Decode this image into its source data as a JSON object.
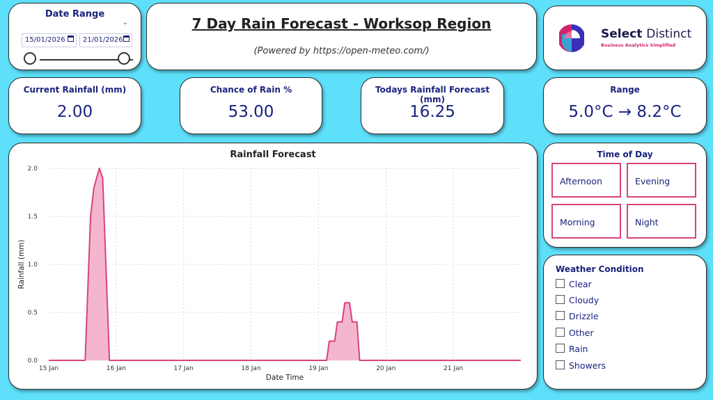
{
  "date_range": {
    "title": "Date Range",
    "start": "15/01/2026",
    "end": "21/01/2026"
  },
  "header": {
    "title": "7 Day Rain Forecast - Worksop Region",
    "subtitle": "(Powered by https://open-meteo.com/)"
  },
  "logo": {
    "name_bold": "Select",
    "name_light": "Distinct",
    "tagline": "Business Analytics Simplified"
  },
  "kpis": [
    {
      "label": "Current Rainfall (mm)",
      "value": "2.00"
    },
    {
      "label": "Chance of Rain %",
      "value": "53.00"
    },
    {
      "label": "Todays Rainfall Forecast (mm)",
      "value": "16.25"
    },
    {
      "label": "Range",
      "value": "5.0°C → 8.2°C"
    }
  ],
  "time_of_day": {
    "title": "Time of Day",
    "options": [
      "Afternoon",
      "Evening",
      "Morning",
      "Night"
    ]
  },
  "weather": {
    "title": "Weather Condition",
    "options": [
      "Clear",
      "Cloudy",
      "Drizzle",
      "Other",
      "Rain",
      "Showers"
    ]
  },
  "colors": {
    "background": "#5ee0fb",
    "accent": "#d8427e",
    "area_fill": "#f4b6cf",
    "text": "#1a237e"
  },
  "chart_data": {
    "type": "area",
    "title": "Rainfall Forecast",
    "xlabel": "Date Time",
    "ylabel": "Rainfall (mm)",
    "ylim": [
      0,
      2.0
    ],
    "xlim": [
      0,
      7
    ],
    "y_ticks": [
      "0.0",
      "0.5",
      "1.0",
      "1.5",
      "2.0"
    ],
    "x_ticks": [
      "15 Jan",
      "16 Jan",
      "17 Jan",
      "18 Jan",
      "19 Jan",
      "20 Jan",
      "21 Jan"
    ],
    "grid": true,
    "series": [
      {
        "points": [
          [
            0,
            0
          ],
          [
            0.54,
            0
          ],
          [
            0.62,
            1.5
          ],
          [
            0.67,
            1.8
          ],
          [
            0.75,
            2.0
          ],
          [
            0.8,
            1.9
          ],
          [
            0.9,
            0
          ],
          [
            4.12,
            0
          ],
          [
            4.16,
            0.2
          ],
          [
            4.24,
            0.2
          ],
          [
            4.28,
            0.4
          ],
          [
            4.35,
            0.4
          ],
          [
            4.39,
            0.6
          ],
          [
            4.46,
            0.6
          ],
          [
            4.5,
            0.4
          ],
          [
            4.57,
            0.4
          ],
          [
            4.61,
            0
          ],
          [
            7,
            0
          ]
        ]
      }
    ]
  }
}
